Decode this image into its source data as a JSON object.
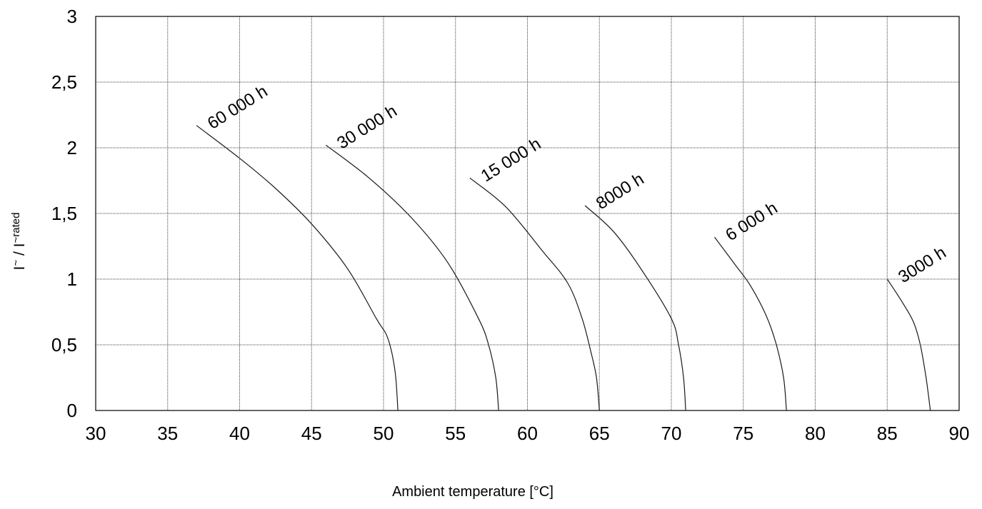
{
  "chart_data": {
    "type": "line",
    "title": "",
    "xlabel": "Ambient temperature [°C]",
    "ylabel": {
      "prefix1": "I",
      "sup1": "~",
      "slash": " / ",
      "prefix2": "I",
      "sup2": "~rated"
    },
    "xlim": [
      30,
      90
    ],
    "ylim": [
      0,
      3
    ],
    "x_ticks": [
      30,
      35,
      40,
      45,
      50,
      55,
      60,
      65,
      70,
      75,
      80,
      85,
      90
    ],
    "x_tick_labels": [
      "30",
      "35",
      "40",
      "45",
      "50",
      "55",
      "60",
      "65",
      "70",
      "75",
      "80",
      "85",
      "90"
    ],
    "y_ticks": [
      0,
      0.5,
      1,
      1.5,
      2,
      2.5,
      3
    ],
    "y_tick_labels": [
      "0",
      "0,5",
      "1",
      "1,5",
      "2",
      "2,5",
      "3"
    ],
    "grid": true,
    "series": [
      {
        "name": "60 000 h",
        "points": [
          [
            37,
            2.17
          ],
          [
            40,
            1.92
          ],
          [
            42.5,
            1.69
          ],
          [
            45,
            1.42
          ],
          [
            47.5,
            1.08
          ],
          [
            49.5,
            0.7
          ],
          [
            50.3,
            0.55
          ],
          [
            50.8,
            0.3
          ],
          [
            51,
            0
          ]
        ]
      },
      {
        "name": "30 000 h",
        "points": [
          [
            46,
            2.02
          ],
          [
            49,
            1.77
          ],
          [
            52,
            1.46
          ],
          [
            54.5,
            1.12
          ],
          [
            56.6,
            0.7
          ],
          [
            57.3,
            0.5
          ],
          [
            57.8,
            0.25
          ],
          [
            58,
            0
          ]
        ]
      },
      {
        "name": "15 000 h",
        "points": [
          [
            56,
            1.77
          ],
          [
            58.5,
            1.55
          ],
          [
            61,
            1.22
          ],
          [
            62.8,
            0.97
          ],
          [
            63.8,
            0.7
          ],
          [
            64.4,
            0.45
          ],
          [
            64.8,
            0.25
          ],
          [
            65,
            0
          ]
        ]
      },
      {
        "name": "8000 h",
        "points": [
          [
            64,
            1.56
          ],
          [
            66,
            1.36
          ],
          [
            68,
            1.06
          ],
          [
            70,
            0.7
          ],
          [
            70.5,
            0.5
          ],
          [
            70.85,
            0.25
          ],
          [
            71,
            0
          ]
        ]
      },
      {
        "name": "6 000 h",
        "points": [
          [
            73,
            1.32
          ],
          [
            74.5,
            1.1
          ],
          [
            75.5,
            0.95
          ],
          [
            76.6,
            0.72
          ],
          [
            77.3,
            0.5
          ],
          [
            77.8,
            0.25
          ],
          [
            78,
            0
          ]
        ]
      },
      {
        "name": "3000 h",
        "points": [
          [
            85,
            1.0
          ],
          [
            85.9,
            0.85
          ],
          [
            86.8,
            0.68
          ],
          [
            87.3,
            0.5
          ],
          [
            87.7,
            0.25
          ],
          [
            88,
            0
          ]
        ]
      }
    ]
  }
}
